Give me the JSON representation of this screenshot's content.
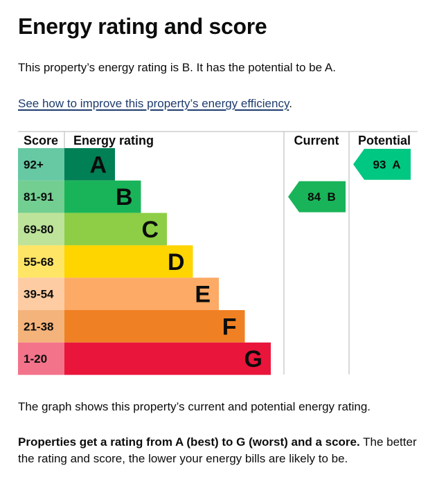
{
  "heading": "Energy rating and score",
  "intro_text": "This property’s energy rating is B. It has the potential to be A.",
  "improve_link": "See how to improve this property’s energy efficiency",
  "improve_suffix": ".",
  "graph_note": "The graph shows this property’s current and potential energy rating.",
  "legend_note_bold": "Properties get a rating from A (best) to G (worst) and a score.",
  "legend_note_rest": " The better the rating and score, the lower your energy bills are likely to be.",
  "chart_data": {
    "type": "bar",
    "headers": {
      "score": "Score",
      "rating": "Energy rating",
      "current": "Current",
      "potential": "Potential"
    },
    "bands": [
      {
        "letter": "A",
        "score_range": "92+",
        "color": "#008054",
        "score_bg": "#67c8a4"
      },
      {
        "letter": "B",
        "score_range": "81-91",
        "color": "#19b459",
        "score_bg": "#72cf91"
      },
      {
        "letter": "C",
        "score_range": "69-80",
        "color": "#8dce46",
        "score_bg": "#bde39a"
      },
      {
        "letter": "D",
        "score_range": "55-68",
        "color": "#ffd500",
        "score_bg": "#ffe566"
      },
      {
        "letter": "E",
        "score_range": "39-54",
        "color": "#fcaa65",
        "score_bg": "#fdcca3"
      },
      {
        "letter": "F",
        "score_range": "21-38",
        "color": "#ef8023",
        "score_bg": "#f4b37b"
      },
      {
        "letter": "G",
        "score_range": "1-20",
        "color": "#e9153b",
        "score_bg": "#f2738a"
      }
    ],
    "current": {
      "score": 84,
      "letter": "B",
      "label": "84  B",
      "color": "#19b459"
    },
    "potential": {
      "score": 93,
      "letter": "A",
      "label": "93  A",
      "color": "#00c781"
    }
  }
}
